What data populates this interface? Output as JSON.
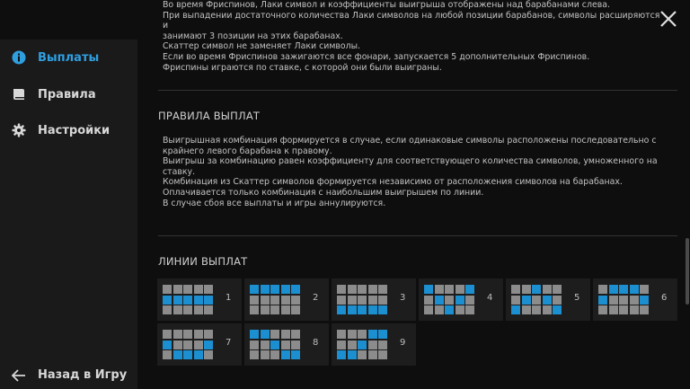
{
  "sidebar": {
    "items": [
      {
        "label": "Выплаты",
        "icon": "info-icon",
        "active": true
      },
      {
        "label": "Правила",
        "icon": "book-icon",
        "active": false
      },
      {
        "label": "Настройки",
        "icon": "gear-icon",
        "active": false
      }
    ],
    "back_label": "Назад в Игру"
  },
  "freespins_text": [
    "Во время Фриспинов, Лаки символ и коэффициенты выигрыша отображены над барабанами слева.",
    "При выпадении достаточного количества Лаки символов на любой позиции барабанов, символы расширяются и",
    "занимают 3 позиции на этих барабанах.",
    "Скаттер символ не заменяет Лаки символы.",
    "Если во время Фриспинов зажигаются все фонари, запускается 5 дополнительных Фриспинов.",
    "Фриспины играются по ставке, с которой они были выиграны."
  ],
  "payout_rules": {
    "title": "ПРАВИЛА ВЫПЛАТ",
    "text": [
      "Выигрышная комбинация формируется в случае, если одинаковые символы расположены последовательно с",
      "крайнего левого барабана к правому.",
      "Выигрыш за комбинацию равен коэффициенту для соответствующего количества символов, умноженного на",
      "ставку.",
      "Комбинация из Скаттер символов формируется независимо от расположения символов на барабанах.",
      "Оплачивается только комбинация с наибольшим выигрышем по линии.",
      "В случае сбоя все выплаты и игры аннулируются."
    ]
  },
  "paylines": {
    "title": "ЛИНИИ ВЫПЛАТ",
    "lines": [
      {
        "number": "1",
        "rows": [
          1,
          1,
          1,
          1,
          1
        ]
      },
      {
        "number": "2",
        "rows": [
          0,
          0,
          0,
          0,
          0
        ]
      },
      {
        "number": "3",
        "rows": [
          2,
          2,
          2,
          2,
          2
        ]
      },
      {
        "number": "4",
        "rows": [
          0,
          1,
          2,
          1,
          0
        ]
      },
      {
        "number": "5",
        "rows": [
          2,
          1,
          0,
          1,
          2
        ]
      },
      {
        "number": "6",
        "rows": [
          1,
          0,
          0,
          0,
          1
        ]
      },
      {
        "number": "7",
        "rows": [
          1,
          2,
          2,
          2,
          1
        ]
      },
      {
        "number": "8",
        "rows": [
          0,
          0,
          1,
          2,
          2
        ]
      },
      {
        "number": "9",
        "rows": [
          2,
          2,
          1,
          0,
          0
        ]
      }
    ]
  },
  "colors": {
    "accent": "#2f9fe0",
    "active_square": "#1b8fd0",
    "inactive_square": "#8c8c8c"
  }
}
